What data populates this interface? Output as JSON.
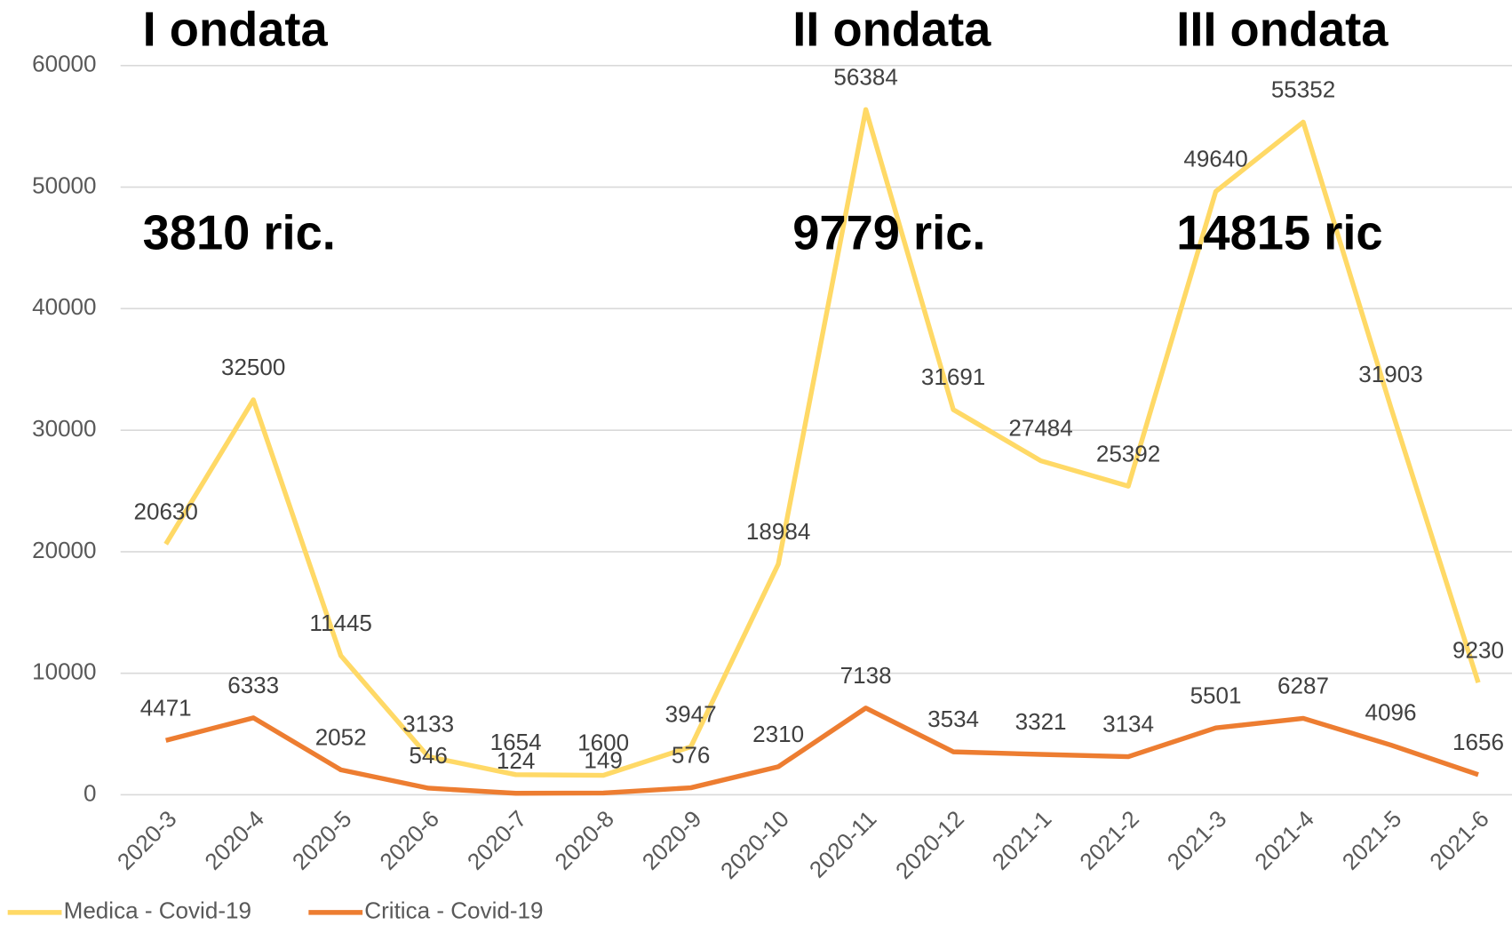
{
  "chart_data": {
    "type": "line",
    "annotations": [
      "I ondata",
      "II ondata",
      "III ondata",
      "3810 ric.",
      "9779 ric.",
      "14815 ric"
    ],
    "categories": [
      "2020-3",
      "2020-4",
      "2020-5",
      "2020-6",
      "2020-7",
      "2020-8",
      "2020-9",
      "2020-10",
      "2020-11",
      "2020-12",
      "2021-1",
      "2021-2",
      "2021-3",
      "2021-4",
      "2021-5",
      "2021-6"
    ],
    "series": [
      {
        "name": "Medica - Covid-19",
        "color": "#ffd966",
        "values": [
          20630,
          32500,
          11445,
          3133,
          1654,
          1600,
          3947,
          18984,
          56384,
          31691,
          27484,
          25392,
          49640,
          55352,
          31903,
          9230
        ]
      },
      {
        "name": "Critica - Covid-19",
        "color": "#ed7d31",
        "values": [
          4471,
          6333,
          2052,
          546,
          124,
          149,
          576,
          2310,
          7138,
          3534,
          3321,
          3134,
          5501,
          6287,
          4096,
          1656
        ]
      }
    ],
    "ylim": [
      0,
      60000
    ],
    "yticks": [
      0,
      10000,
      20000,
      30000,
      40000,
      50000,
      60000
    ],
    "grid": true
  }
}
